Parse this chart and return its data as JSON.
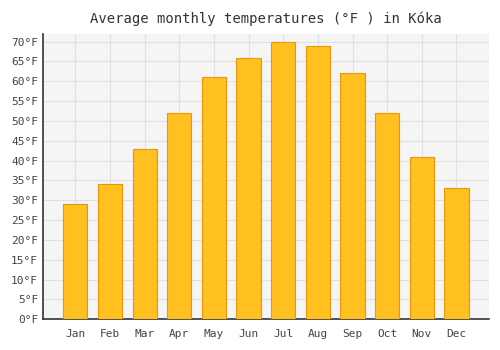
{
  "title": "Average monthly temperatures (°F ) in Kóka",
  "months": [
    "Jan",
    "Feb",
    "Mar",
    "Apr",
    "May",
    "Jun",
    "Jul",
    "Aug",
    "Sep",
    "Oct",
    "Nov",
    "Dec"
  ],
  "values": [
    29,
    34,
    43,
    52,
    61,
    66,
    70,
    69,
    62,
    52,
    41,
    33
  ],
  "bar_color": "#FFC020",
  "bar_edge_color": "#E8960A",
  "background_color": "#ffffff",
  "plot_bg_color": "#f5f5f5",
  "grid_color": "#e0e0e0",
  "ylim": [
    0,
    72
  ],
  "yticks": [
    0,
    5,
    10,
    15,
    20,
    25,
    30,
    35,
    40,
    45,
    50,
    55,
    60,
    65,
    70
  ],
  "title_fontsize": 10,
  "tick_fontsize": 8,
  "tick_color": "#444444",
  "title_color": "#333333",
  "font_family": "monospace",
  "bar_width": 0.7
}
